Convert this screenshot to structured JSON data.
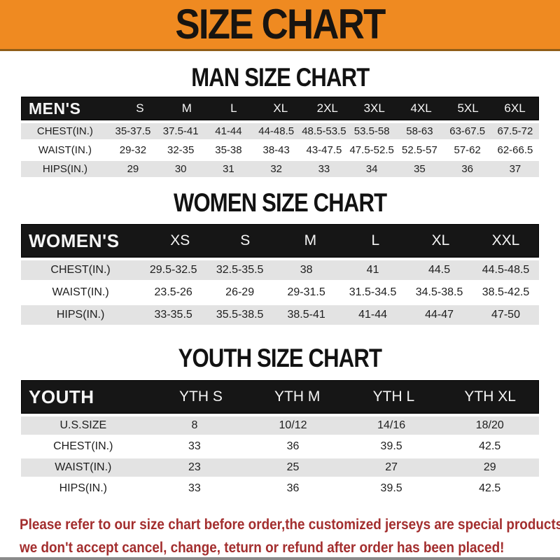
{
  "banner": {
    "title": "SIZE CHART"
  },
  "sections": [
    {
      "heading": "MAN SIZE CHART",
      "header_label": "MEN'S",
      "sizes": [
        "S",
        "M",
        "L",
        "XL",
        "2XL",
        "3XL",
        "4XL",
        "5XL",
        "6XL"
      ],
      "rows": [
        {
          "label": "CHEST(IN.)",
          "values": [
            "35-37.5",
            "37.5-41",
            "41-44",
            "44-48.5",
            "48.5-53.5",
            "53.5-58",
            "58-63",
            "63-67.5",
            "67.5-72"
          ]
        },
        {
          "label": "WAIST(IN.)",
          "values": [
            "29-32",
            "32-35",
            "35-38",
            "38-43",
            "43-47.5",
            "47.5-52.5",
            "52.5-57",
            "57-62",
            "62-66.5"
          ]
        },
        {
          "label": "HIPS(IN.)",
          "values": [
            "29",
            "30",
            "31",
            "32",
            "33",
            "34",
            "35",
            "36",
            "37"
          ]
        }
      ]
    },
    {
      "heading": "WOMEN SIZE CHART",
      "header_label": "WOMEN'S",
      "sizes": [
        "XS",
        "S",
        "M",
        "L",
        "XL",
        "XXL"
      ],
      "rows": [
        {
          "label": "CHEST(IN.)",
          "values": [
            "29.5-32.5",
            "32.5-35.5",
            "38",
            "41",
            "44.5",
            "44.5-48.5"
          ]
        },
        {
          "label": "WAIST(IN.)",
          "values": [
            "23.5-26",
            "26-29",
            "29-31.5",
            "31.5-34.5",
            "34.5-38.5",
            "38.5-42.5"
          ]
        },
        {
          "label": "HIPS(IN.)",
          "values": [
            "33-35.5",
            "35.5-38.5",
            "38.5-41",
            "41-44",
            "44-47",
            "47-50"
          ]
        }
      ]
    },
    {
      "heading": "YOUTH SIZE CHART",
      "header_label": "YOUTH",
      "sizes": [
        "YTH S",
        "YTH M",
        "YTH L",
        "YTH XL"
      ],
      "rows": [
        {
          "label": "U.S.SIZE",
          "values": [
            "8",
            "10/12",
            "14/16",
            "18/20"
          ]
        },
        {
          "label": "CHEST(IN.)",
          "values": [
            "33",
            "36",
            "39.5",
            "42.5"
          ]
        },
        {
          "label": "WAIST(IN.)",
          "values": [
            "23",
            "25",
            "27",
            "29"
          ]
        },
        {
          "label": "HIPS(IN.)",
          "values": [
            "33",
            "36",
            "39.5",
            "42.5"
          ]
        }
      ]
    }
  ],
  "footer": {
    "line1": "Please refer to our size chart before order,the customized jerseys are special products,",
    "line2": "we don't accept cancel, change, teturn or refund after order has been placed!"
  },
  "colors": {
    "banner_bg": "#EF8A21",
    "header_bar_bg": "#161616",
    "row_gray": "#E3E3E3",
    "note_red": "#A32E2E"
  }
}
